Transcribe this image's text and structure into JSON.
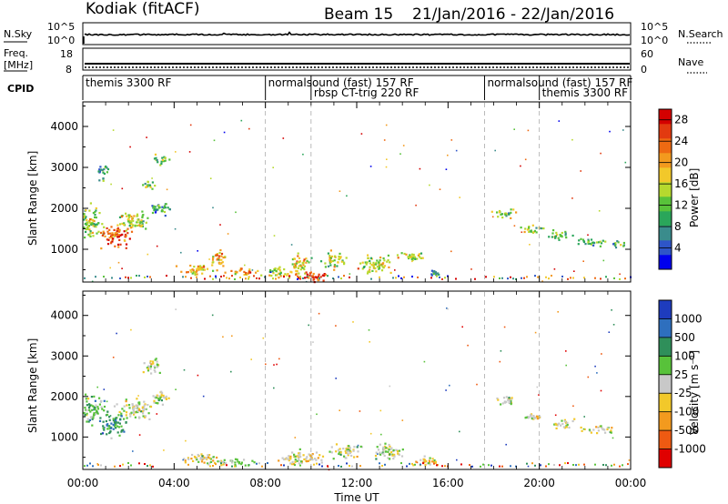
{
  "header": {
    "station": "Kodiak (fitACF)",
    "beam": "Beam 15",
    "dates": "21/Jan/2016 - 22/Jan/2016"
  },
  "noise_panel": {
    "left_label": "N.Sky",
    "right_label": "N.Search",
    "ticks": [
      "10^5",
      "10^0"
    ]
  },
  "freq_panel": {
    "left_label_line1": "Freq.",
    "left_label_line2": "[MHz]",
    "left_ticks": [
      "18",
      "8"
    ],
    "right_label": "Nave",
    "right_ticks": [
      "60",
      "0"
    ]
  },
  "cpid": {
    "label": "CPID",
    "programs": [
      {
        "name": "themis 3300 RF",
        "start_hour": 0
      },
      {
        "name": "normalsound (fast) 157 RF",
        "start_hour": 8
      },
      {
        "name": "rbsp CT-trig 220 RF",
        "start_hour": 10
      },
      {
        "name": "normalsound (fast) 157 RF",
        "start_hour": 17.6
      },
      {
        "name": "themis 3300 RF",
        "start_hour": 20
      }
    ]
  },
  "chart_data": [
    {
      "type": "heatmap",
      "name": "power",
      "ylabel": "Slant Range [km]",
      "yticks": [
        "1000",
        "2000",
        "3000",
        "4000"
      ],
      "xlim": [
        0,
        24
      ],
      "ylim": [
        200,
        4600
      ],
      "colorbar": {
        "label": "Power [dB]",
        "ticks": [
          "4",
          "8",
          "12",
          "16",
          "20",
          "24",
          "28"
        ],
        "range": [
          0,
          30
        ],
        "colors": [
          "#0000ee",
          "#2e55c8",
          "#3a8c8c",
          "#2aa65a",
          "#58c23a",
          "#b6d92e",
          "#f2c82a",
          "#f39a1e",
          "#ee6a12",
          "#e23a10",
          "#d40000"
        ]
      },
      "blobs": [
        {
          "h": 0.2,
          "r": 1700,
          "dh": 0.9,
          "dr": 600,
          "level": 0.45
        },
        {
          "h": 1.4,
          "r": 1350,
          "dh": 1.0,
          "dr": 420,
          "level": 0.82
        },
        {
          "h": 2.2,
          "r": 1700,
          "dh": 1.1,
          "dr": 350,
          "level": 0.5
        },
        {
          "h": 3.3,
          "r": 2000,
          "dh": 0.9,
          "dr": 220,
          "level": 0.3
        },
        {
          "h": 2.9,
          "r": 2600,
          "dh": 0.5,
          "dr": 200,
          "level": 0.4
        },
        {
          "h": 3.4,
          "r": 3200,
          "dh": 0.5,
          "dr": 220,
          "level": 0.35
        },
        {
          "h": 0.8,
          "r": 2900,
          "dh": 0.4,
          "dr": 300,
          "level": 0.3
        },
        {
          "h": 5.0,
          "r": 500,
          "dh": 1.2,
          "dr": 200,
          "level": 0.6
        },
        {
          "h": 5.9,
          "r": 800,
          "dh": 0.6,
          "dr": 300,
          "level": 0.7
        },
        {
          "h": 7.0,
          "r": 450,
          "dh": 1.2,
          "dr": 150,
          "level": 0.7
        },
        {
          "h": 8.6,
          "r": 450,
          "dh": 0.9,
          "dr": 220,
          "level": 0.55
        },
        {
          "h": 9.5,
          "r": 650,
          "dh": 0.7,
          "dr": 350,
          "level": 0.55
        },
        {
          "h": 10.0,
          "r": 350,
          "dh": 1.3,
          "dr": 180,
          "level": 0.9
        },
        {
          "h": 11.0,
          "r": 750,
          "dh": 0.8,
          "dr": 300,
          "level": 0.5
        },
        {
          "h": 12.8,
          "r": 650,
          "dh": 1.1,
          "dr": 350,
          "level": 0.55
        },
        {
          "h": 14.4,
          "r": 850,
          "dh": 0.9,
          "dr": 200,
          "level": 0.5
        },
        {
          "h": 15.4,
          "r": 400,
          "dh": 0.5,
          "dr": 150,
          "level": 0.25
        },
        {
          "h": 18.5,
          "r": 1900,
          "dh": 0.8,
          "dr": 180,
          "level": 0.45
        },
        {
          "h": 19.6,
          "r": 1500,
          "dh": 0.8,
          "dr": 160,
          "level": 0.5
        },
        {
          "h": 20.8,
          "r": 1350,
          "dh": 0.8,
          "dr": 170,
          "level": 0.45
        },
        {
          "h": 22.2,
          "r": 1200,
          "dh": 1.0,
          "dr": 150,
          "level": 0.35
        },
        {
          "h": 23.4,
          "r": 1150,
          "dh": 0.6,
          "dr": 120,
          "level": 0.35
        }
      ]
    },
    {
      "type": "heatmap",
      "name": "velocity",
      "ylabel": "Slant Range [km]",
      "yticks": [
        "1000",
        "2000",
        "3000",
        "4000"
      ],
      "xlabel": "Time UT",
      "xticks": [
        "00:00",
        "04:00",
        "08:00",
        "12:00",
        "16:00",
        "20:00",
        "00:00"
      ],
      "xlim": [
        0,
        24
      ],
      "ylim": [
        200,
        4600
      ],
      "colorbar": {
        "label": "Velocity [m s⁻¹]",
        "ticks": [
          "1000",
          "500",
          "100",
          "25",
          "-25",
          "-100",
          "-500",
          "-1000"
        ],
        "colors": [
          "#1e3cbe",
          "#2e6fbe",
          "#2f8f5a",
          "#58c23a",
          "#c8c8c8",
          "#f2c82a",
          "#f39a1e",
          "#ee5a12",
          "#e00000"
        ]
      },
      "blobs": [
        {
          "h": 0.4,
          "r": 1700,
          "dh": 0.9,
          "dr": 500,
          "level": 0.35
        },
        {
          "h": 1.3,
          "r": 1300,
          "dh": 1.0,
          "dr": 400,
          "level": 0.25
        },
        {
          "h": 2.3,
          "r": 1700,
          "dh": 1.2,
          "dr": 380,
          "level": 0.5
        },
        {
          "h": 3.4,
          "r": 2000,
          "dh": 0.8,
          "dr": 220,
          "level": 0.5
        },
        {
          "h": 3.0,
          "r": 2800,
          "dh": 0.6,
          "dr": 300,
          "level": 0.5
        },
        {
          "h": 5.2,
          "r": 500,
          "dh": 1.2,
          "dr": 200,
          "level": 0.55
        },
        {
          "h": 6.6,
          "r": 400,
          "dh": 1.4,
          "dr": 150,
          "level": 0.45
        },
        {
          "h": 9.5,
          "r": 500,
          "dh": 1.4,
          "dr": 280,
          "level": 0.55
        },
        {
          "h": 11.5,
          "r": 650,
          "dh": 1.0,
          "dr": 300,
          "level": 0.5
        },
        {
          "h": 13.4,
          "r": 650,
          "dh": 1.1,
          "dr": 300,
          "level": 0.5
        },
        {
          "h": 15.0,
          "r": 450,
          "dh": 0.9,
          "dr": 200,
          "level": 0.6
        },
        {
          "h": 18.6,
          "r": 1900,
          "dh": 0.8,
          "dr": 180,
          "level": 0.5
        },
        {
          "h": 19.8,
          "r": 1500,
          "dh": 0.8,
          "dr": 160,
          "level": 0.5
        },
        {
          "h": 21.0,
          "r": 1350,
          "dh": 0.8,
          "dr": 170,
          "level": 0.55
        },
        {
          "h": 22.5,
          "r": 1200,
          "dh": 1.0,
          "dr": 150,
          "level": 0.5
        }
      ]
    }
  ]
}
